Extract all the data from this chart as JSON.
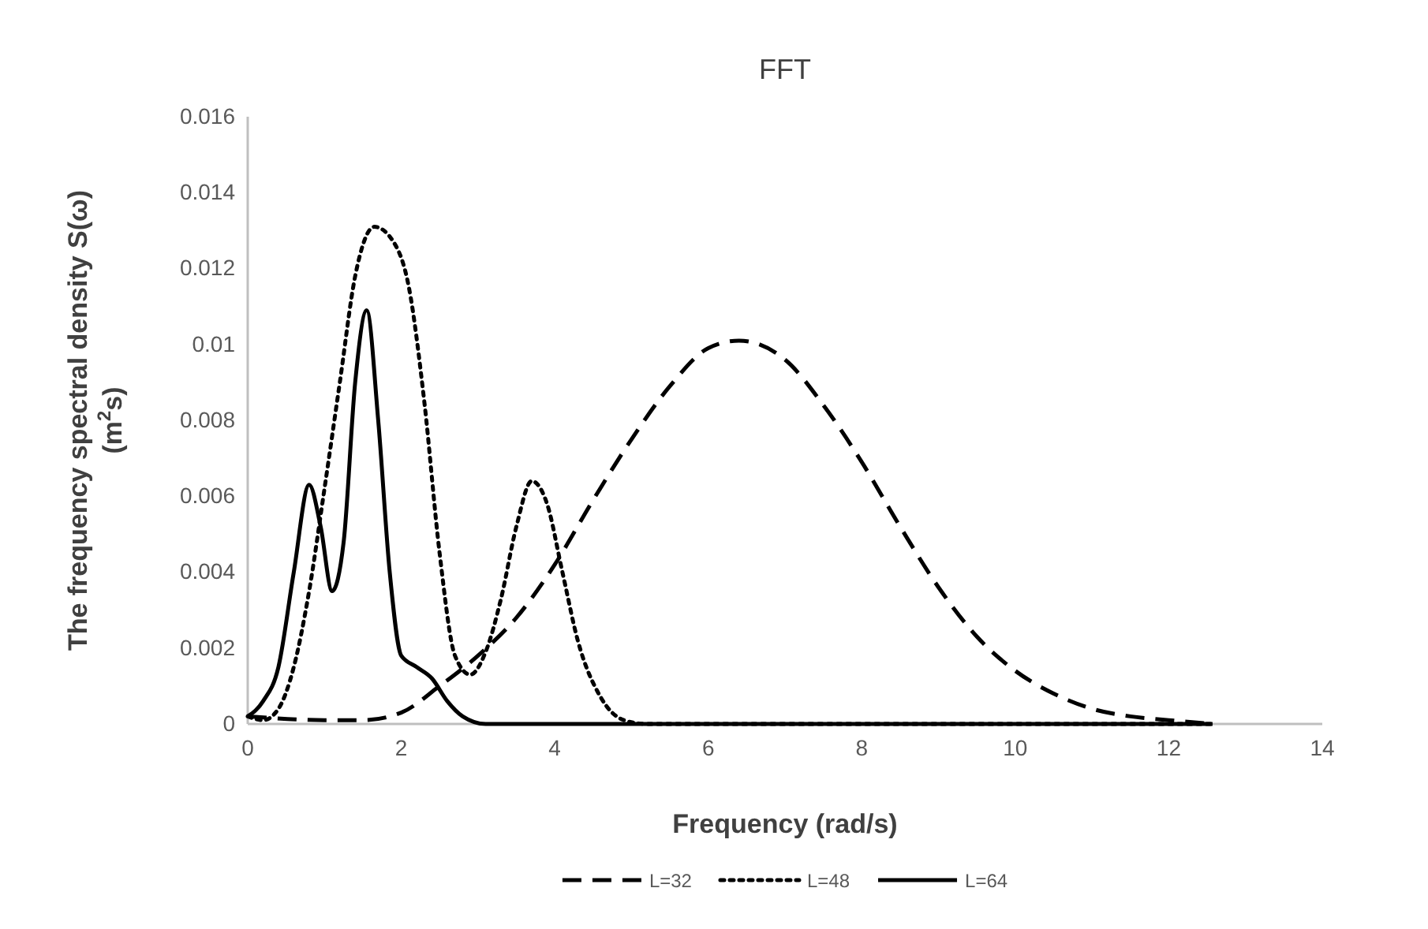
{
  "chart_data": {
    "type": "line",
    "title": "FFT",
    "xlabel": "Frequency (rad/s)",
    "ylabel": "The frequency spectral density S(ω) (m$^{2}$s)",
    "xlim": [
      0,
      14
    ],
    "xticks": [
      0,
      2,
      4,
      6,
      8,
      10,
      12,
      14
    ],
    "ylim": [
      0,
      0.016
    ],
    "yticks": [
      0,
      0.002,
      0.004,
      0.006,
      0.008,
      0.01,
      0.012,
      0.014,
      0.016
    ],
    "grid": false,
    "legend": "bottom",
    "marker": "none",
    "series": [
      {
        "name": "L=32",
        "color": "#000000",
        "line_style": "dashed",
        "x": [
          0,
          1,
          1.5,
          2,
          2.5,
          3,
          3.5,
          4,
          4.5,
          5,
          5.5,
          6,
          6.4,
          7,
          7.5,
          8,
          8.5,
          9,
          9.5,
          10,
          10.5,
          11,
          11.5,
          12,
          12.57
        ],
        "values": [
          0.0002,
          0.0001,
          0.0001,
          0.0003,
          0.001,
          0.0018,
          0.0028,
          0.0042,
          0.0059,
          0.0075,
          0.0089,
          0.0099,
          0.0101,
          0.0096,
          0.0084,
          0.0069,
          0.0052,
          0.0036,
          0.0023,
          0.0014,
          0.0008,
          0.0004,
          0.0002,
          0.0001,
          0
        ]
      },
      {
        "name": "L=48",
        "color": "#000000",
        "line_style": "dotted",
        "x": [
          0,
          0.2,
          0.4,
          0.6,
          0.8,
          1,
          1.2,
          1.4,
          1.65,
          1.9,
          2.1,
          2.3,
          2.5,
          2.7,
          2.9,
          3.1,
          3.3,
          3.5,
          3.7,
          3.9,
          4.1,
          4.3,
          4.6,
          4.9,
          5.2,
          6,
          8,
          10,
          12.57
        ],
        "values": [
          0.0002,
          0.0001,
          0.0004,
          0.0015,
          0.0035,
          0.0062,
          0.009,
          0.0118,
          0.0131,
          0.0127,
          0.0115,
          0.0085,
          0.0045,
          0.0018,
          0.0013,
          0.0019,
          0.0033,
          0.0052,
          0.0064,
          0.0058,
          0.004,
          0.0022,
          0.0007,
          0.0001,
          0,
          0,
          0,
          0,
          0
        ]
      },
      {
        "name": "L=64",
        "color": "#000000",
        "line_style": "solid",
        "x": [
          0,
          0.2,
          0.4,
          0.6,
          0.8,
          0.95,
          1.1,
          1.25,
          1.4,
          1.55,
          1.7,
          1.85,
          2,
          2.2,
          2.4,
          2.6,
          2.8,
          3.1,
          4,
          6,
          8,
          10,
          12.57
        ],
        "values": [
          0.0002,
          0.0006,
          0.0015,
          0.004,
          0.0063,
          0.0052,
          0.0035,
          0.0048,
          0.009,
          0.0109,
          0.008,
          0.004,
          0.0018,
          0.0015,
          0.0012,
          0.0006,
          0.0002,
          0,
          0,
          0,
          0,
          0,
          0
        ]
      }
    ]
  }
}
